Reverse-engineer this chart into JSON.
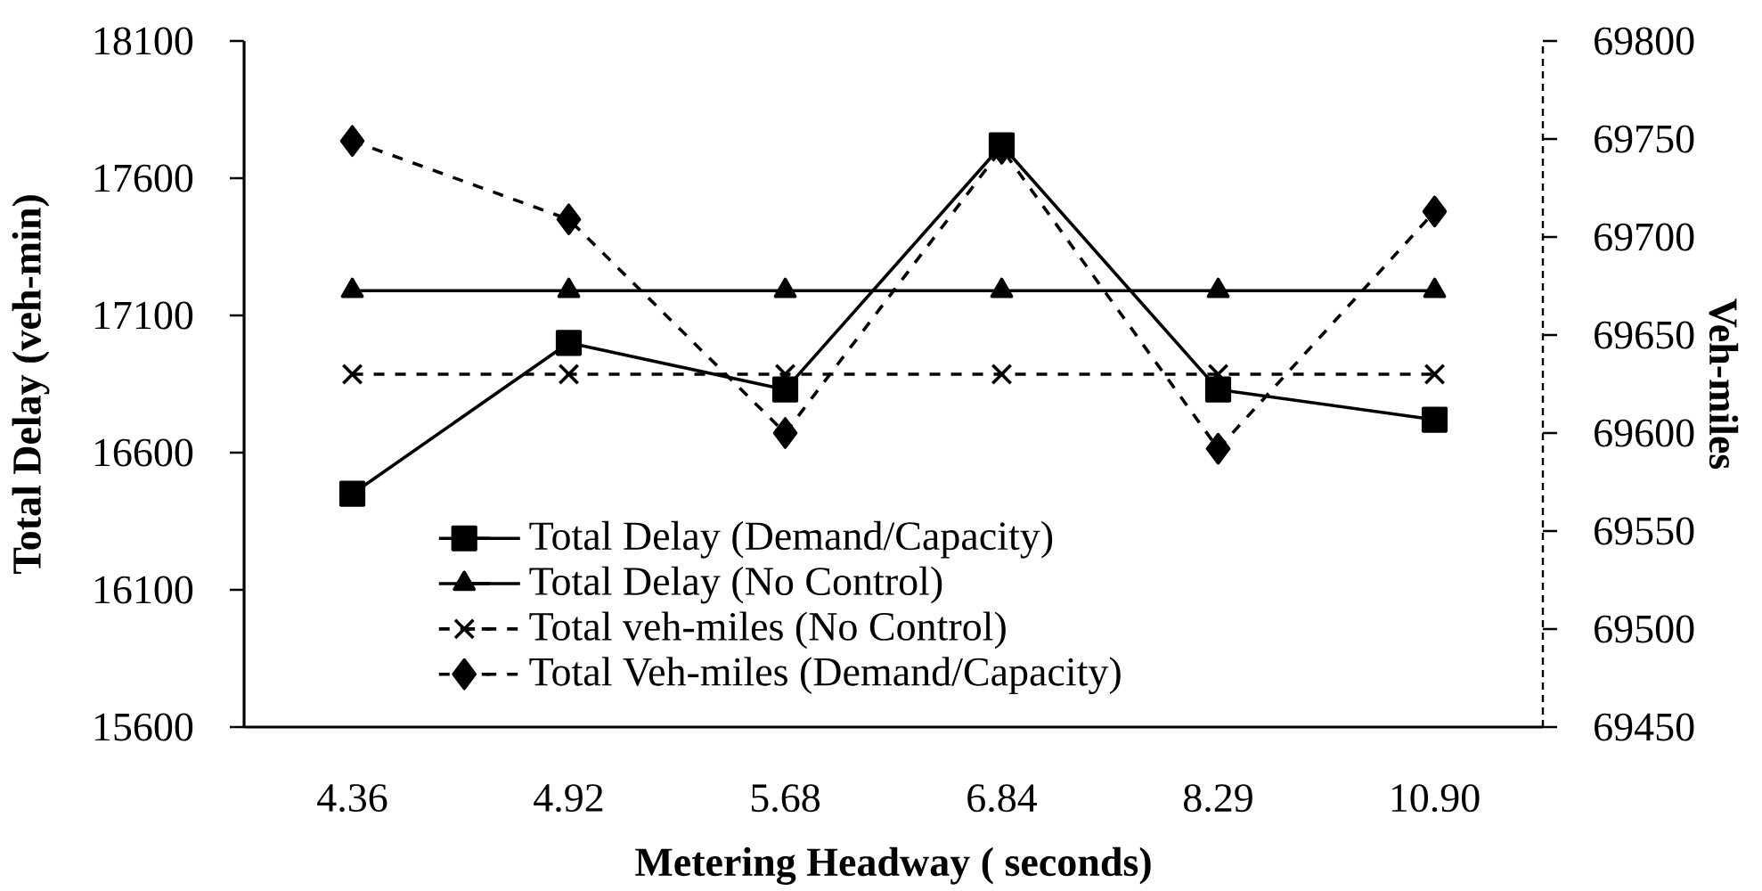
{
  "chart_data": {
    "type": "line",
    "xlabel": "Metering Headway ( seconds)",
    "ylabel": "Total Delay (veh-min)",
    "y2label": "Veh-miles",
    "categories": [
      "4.36",
      "4.92",
      "5.68",
      "6.84",
      "8.29",
      "10.90"
    ],
    "series": [
      {
        "name": "Total Delay (Demand/Capacity)",
        "color": "#000000",
        "marker": "square",
        "line_style": "solid",
        "values": [
          16450,
          17000,
          16830,
          17720,
          16830,
          16720
        ]
      },
      {
        "name": "Total Delay (No Control)",
        "color": "#000000",
        "marker": "triangle",
        "line_style": "solid",
        "values": [
          17190,
          17190,
          17190,
          17190,
          17190,
          17190
        ]
      },
      {
        "name": "Total veh-miles (No Control)",
        "color": "#000000",
        "marker": "cross",
        "line_style": "dashed",
        "axis": "y2",
        "values": [
          69630,
          69630,
          69630,
          69630,
          69630,
          69630
        ]
      },
      {
        "name": "Total Veh-miles (Demand/Capacity)",
        "color": "#000000",
        "marker": "diamond",
        "line_style": "dashed",
        "axis": "y2",
        "values": [
          69749,
          69709,
          69600,
          69745,
          69592,
          69713
        ]
      }
    ],
    "ylim": [
      15600,
      18100
    ],
    "yticks": [
      15600,
      16100,
      16600,
      17100,
      17600,
      18100
    ],
    "y2lim": [
      69450,
      69800
    ],
    "y2ticks": [
      69450,
      69500,
      69550,
      69600,
      69650,
      69700,
      69750,
      69800
    ],
    "grid": false,
    "legend": "bottom left"
  }
}
